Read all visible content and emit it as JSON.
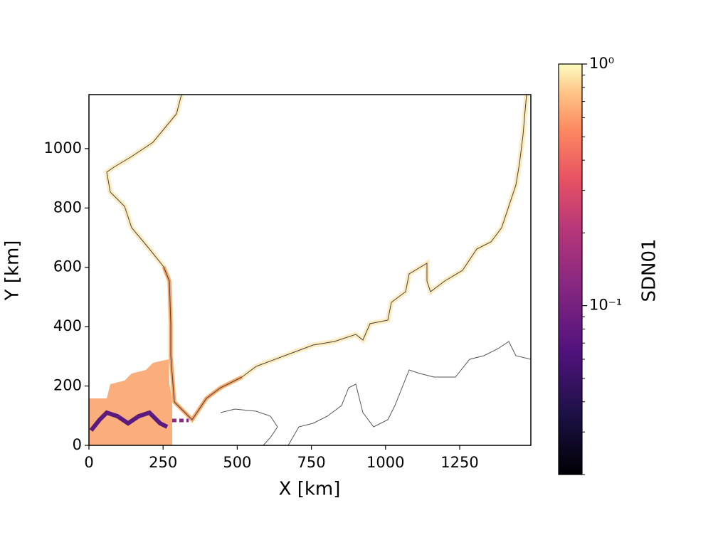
{
  "chart_data": {
    "type": "heatmap",
    "xlabel": "X [km]",
    "ylabel": "Y [km]",
    "xlim": [
      0,
      1490
    ],
    "ylim": [
      0,
      1182
    ],
    "xticks": [
      0,
      250,
      500,
      750,
      1000,
      1250
    ],
    "yticks": [
      0,
      200,
      400,
      600,
      800,
      1000
    ],
    "colorbar": {
      "label": "SDN01",
      "scale": "log",
      "colormap": "magma",
      "lim": [
        0.02,
        1
      ],
      "ticks": [
        {
          "value": 1,
          "label": "10⁰"
        },
        {
          "value": 0.1,
          "label": "10⁻¹"
        }
      ]
    }
  }
}
